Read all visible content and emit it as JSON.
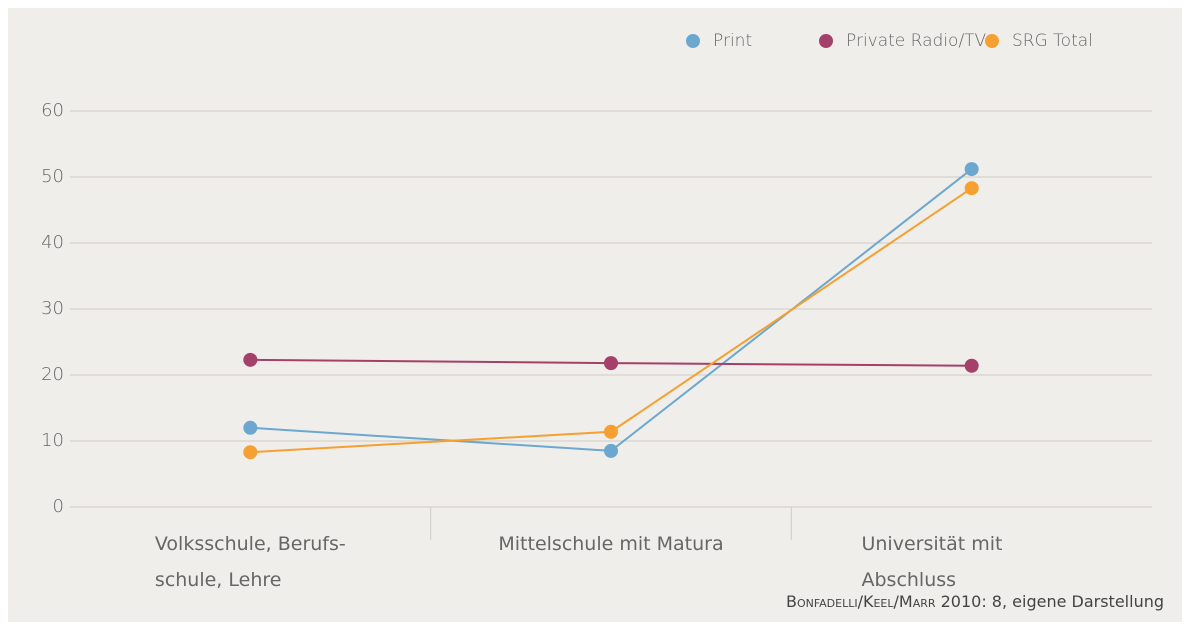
{
  "chart_data": {
    "type": "line",
    "categories": [
      "Volksschule, Berufs-\nschule, Lehre",
      "Mittelschule mit Matura",
      "Universität mit Abschluss"
    ],
    "series": [
      {
        "name": "Print",
        "color": "#6ba7cf",
        "values": [
          12.0,
          8.5,
          51.2
        ]
      },
      {
        "name": "Private Radio/TV",
        "color": "#a5406b",
        "values": [
          22.3,
          21.8,
          21.4
        ]
      },
      {
        "name": "SRG Total",
        "color": "#f5a030",
        "values": [
          8.3,
          11.4,
          48.3
        ]
      }
    ],
    "ylim": [
      0,
      60
    ],
    "yticks": [
      0,
      10,
      20,
      30,
      40,
      50,
      60
    ],
    "grid": true,
    "legend": "top-right",
    "source": "Bonfadelli/Keel/Marr",
    "source_detail": "2010: 8, eigene Darstellung"
  }
}
